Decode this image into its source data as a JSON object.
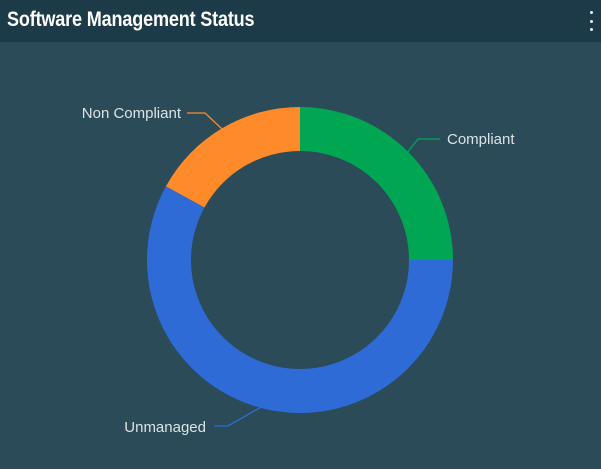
{
  "widget": {
    "title": "Software Management Status",
    "menu_icon": "vertical-ellipsis-icon"
  },
  "chart_data": {
    "type": "pie",
    "title": "Software Management Status",
    "donut": true,
    "slices": [
      {
        "name": "Compliant",
        "value": 25,
        "color": "#00a651"
      },
      {
        "name": "Unmanaged",
        "value": 58,
        "color": "#2f6bd6"
      },
      {
        "name": "Non Compliant",
        "value": 17,
        "color": "#ff8a2a"
      }
    ]
  }
}
